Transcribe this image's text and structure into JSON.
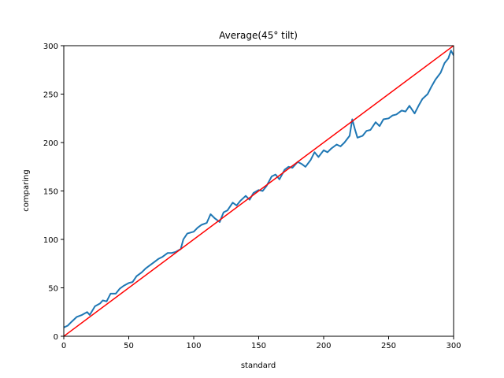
{
  "chart_data": {
    "type": "line",
    "title": "Average(45° tilt)",
    "xlabel": "standard",
    "ylabel": "comparing",
    "xlim": [
      0,
      300
    ],
    "ylim": [
      0,
      300
    ],
    "xticks": [
      "0",
      "50",
      "100",
      "150",
      "200",
      "250",
      "300"
    ],
    "yticks": [
      "0",
      "50",
      "100",
      "150",
      "200",
      "250",
      "300"
    ],
    "grid": false,
    "legend": "none",
    "series": [
      {
        "color": "#1f77b4",
        "x": [
          0,
          3,
          6,
          10,
          14,
          18,
          20,
          24,
          28,
          30,
          33,
          36,
          40,
          43,
          46,
          50,
          53,
          56,
          60,
          63,
          66,
          70,
          73,
          76,
          80,
          83,
          86,
          90,
          92,
          95,
          100,
          103,
          106,
          110,
          113,
          116,
          120,
          123,
          126,
          130,
          133,
          136,
          140,
          143,
          146,
          150,
          153,
          156,
          160,
          163,
          166,
          170,
          173,
          176,
          180,
          183,
          186,
          190,
          193,
          196,
          200,
          203,
          206,
          210,
          213,
          216,
          220,
          222,
          224,
          226,
          230,
          233,
          236,
          240,
          243,
          246,
          250,
          253,
          256,
          260,
          263,
          266,
          270,
          273,
          276,
          280,
          283,
          286,
          290,
          293,
          296,
          298,
          300
        ],
        "y": [
          9,
          11,
          15,
          20,
          22,
          25,
          22,
          31,
          34,
          37,
          36,
          44,
          44,
          49,
          52,
          55,
          56,
          62,
          66,
          70,
          73,
          77,
          80,
          82,
          86,
          86,
          87,
          90,
          100,
          106,
          108,
          112,
          115,
          117,
          126,
          122,
          118,
          128,
          130,
          138,
          135,
          140,
          145,
          141,
          148,
          151,
          150,
          155,
          165,
          167,
          162,
          172,
          175,
          174,
          180,
          178,
          175,
          182,
          190,
          185,
          192,
          190,
          194,
          198,
          196,
          200,
          207,
          224,
          214,
          205,
          207,
          212,
          213,
          221,
          217,
          224,
          225,
          228,
          229,
          233,
          232,
          238,
          230,
          238,
          245,
          250,
          258,
          265,
          272,
          282,
          287,
          295,
          290
        ]
      },
      {
        "color": "#ff0000",
        "x": [
          0,
          300
        ],
        "y": [
          0,
          300
        ]
      }
    ]
  }
}
